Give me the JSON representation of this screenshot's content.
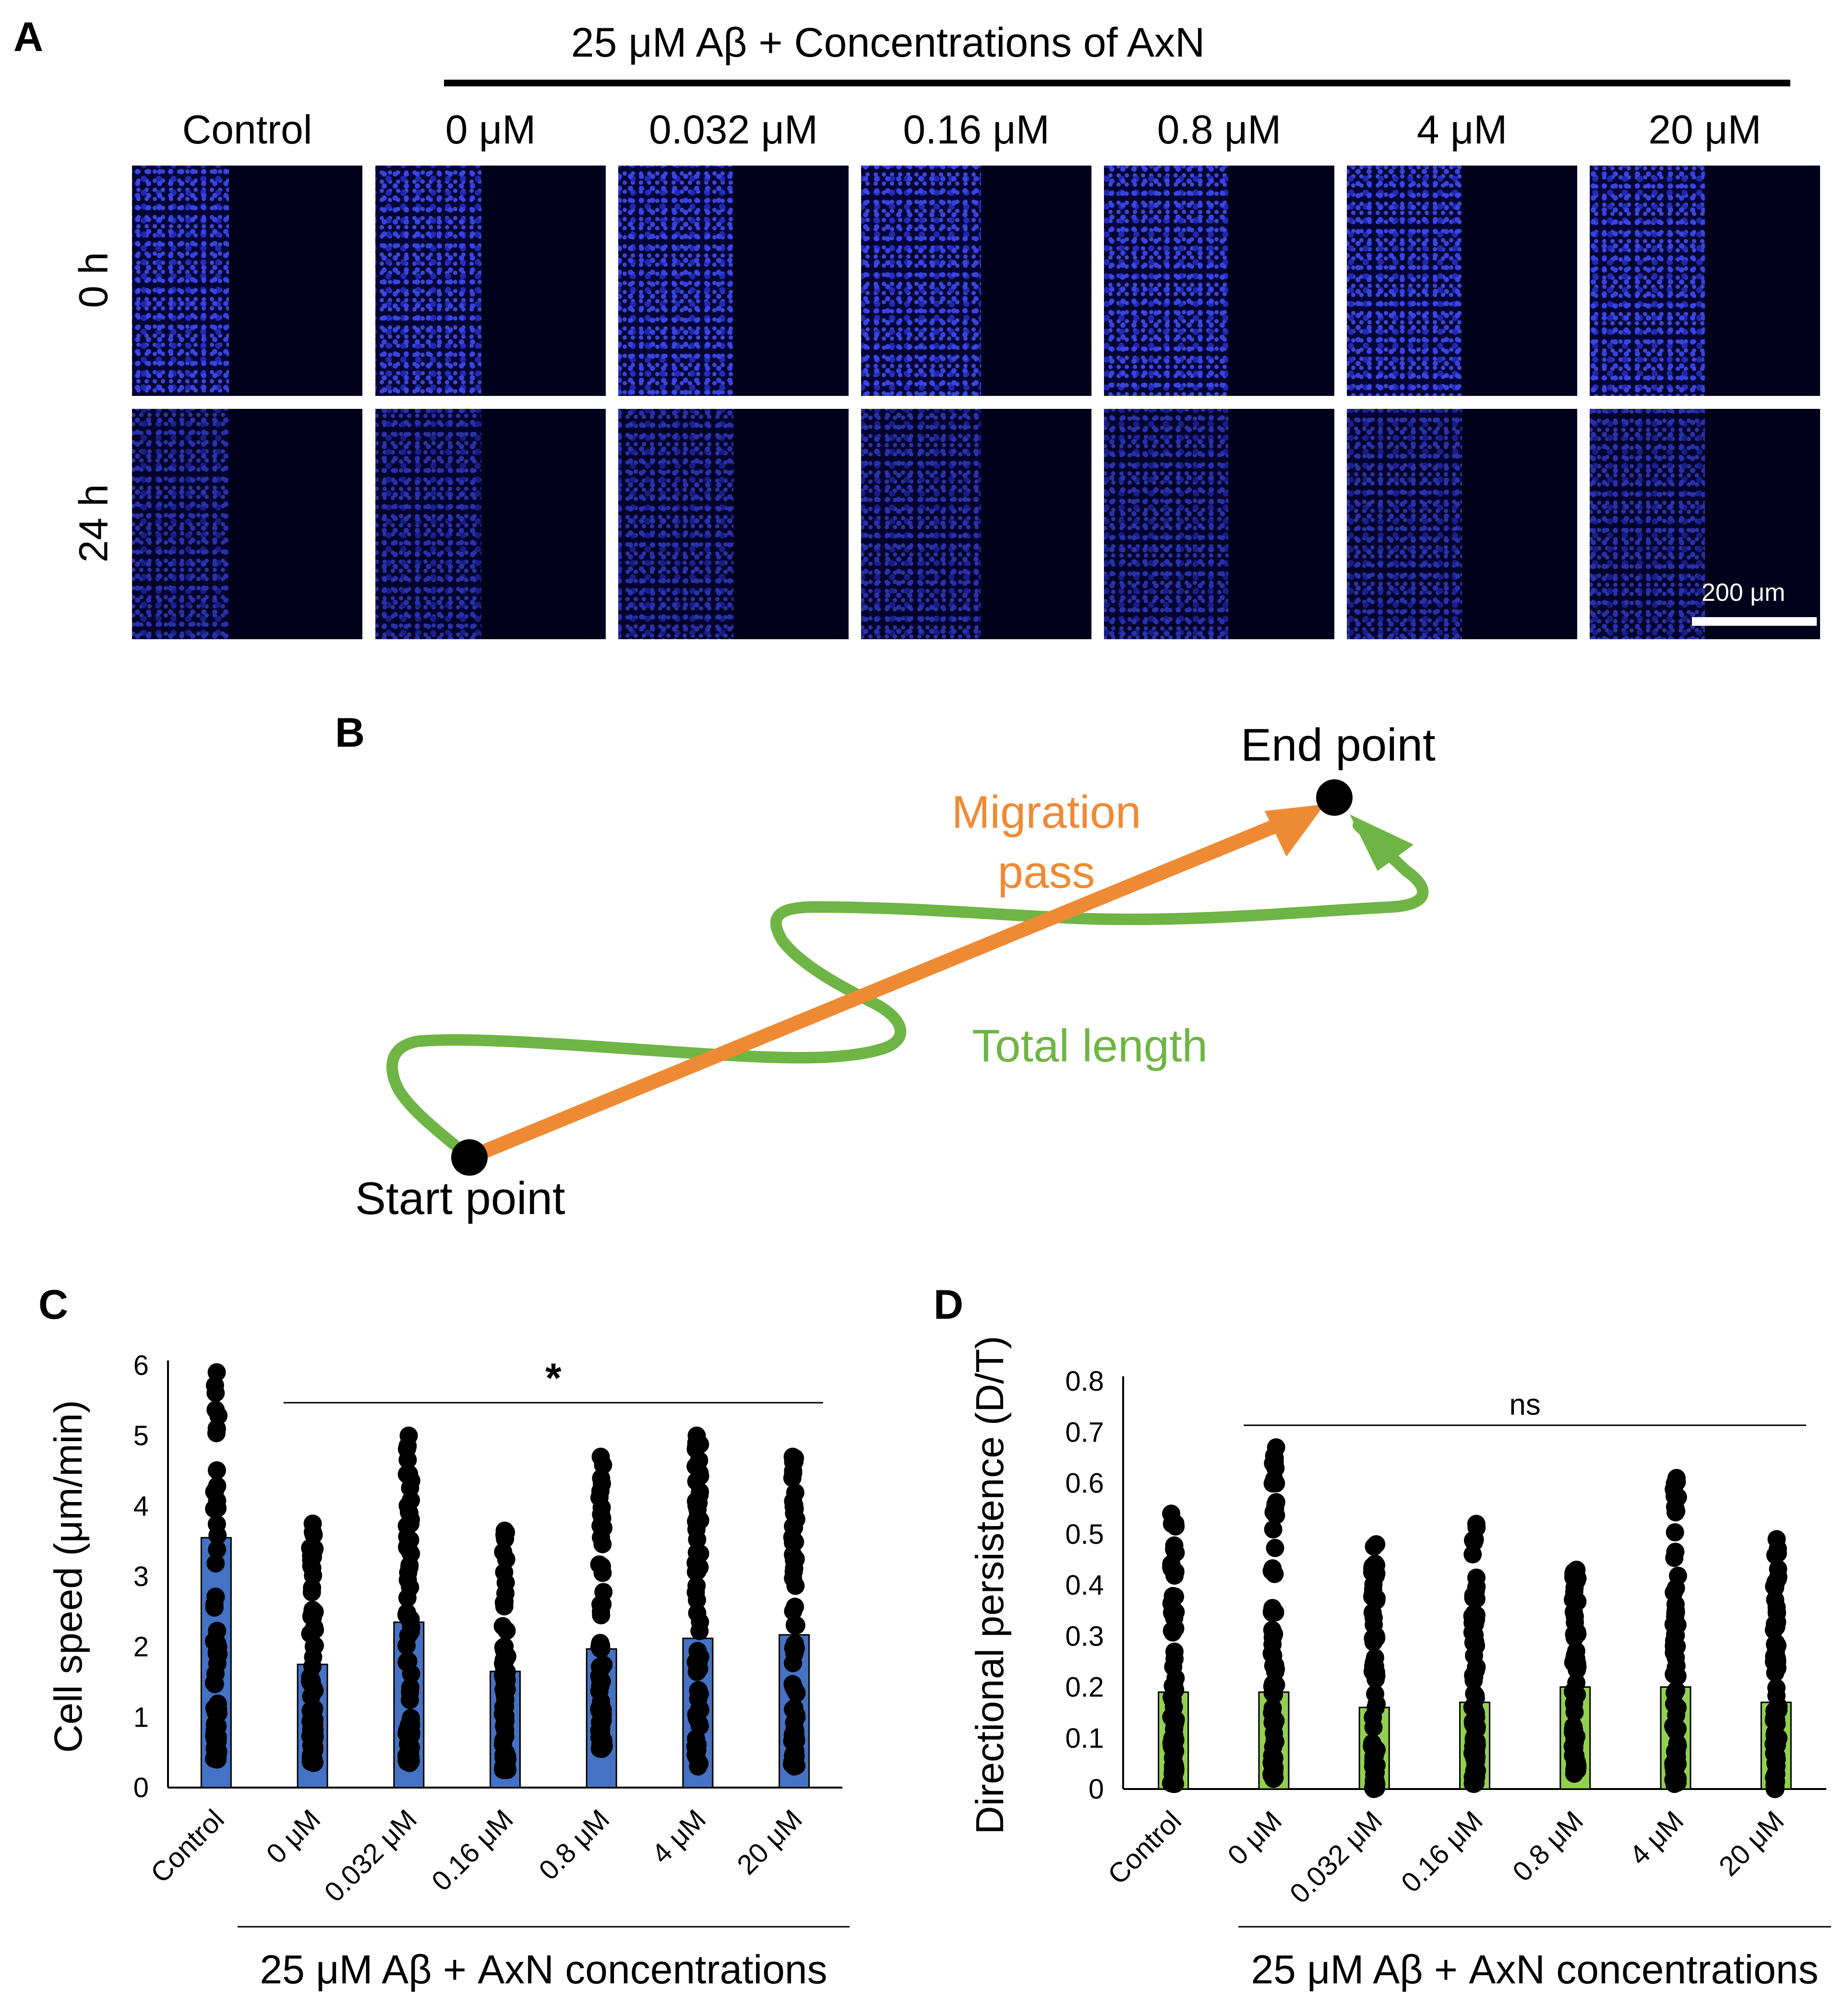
{
  "panel_A": {
    "letter": "A",
    "header": "25 μM Aβ + Concentrations of AxN",
    "columns": [
      "Control",
      "0 μM",
      "0.032 μM",
      "0.16 μM",
      "0.8 μM",
      "4 μM",
      "20 μM"
    ],
    "rows": [
      "0 h",
      "24 h"
    ],
    "scale_bar_label": "200 μm",
    "cell_color": "#2a3ae0",
    "background_color": "#01011c"
  },
  "panel_B": {
    "letter": "B",
    "end_label": "End point",
    "start_label": "Start point",
    "migration_label_1": "Migration",
    "migration_label_2": "pass",
    "total_label": "Total length",
    "migration_color": "#ef8a34",
    "total_color": "#6fb545"
  },
  "panel_C": {
    "letter": "C"
  },
  "panel_D": {
    "letter": "D"
  },
  "chart_data": [
    {
      "type": "bar",
      "ylabel": "Cell speed (μm/min)",
      "xlabel": "25 μM Aβ + AxN concentrations",
      "categories": [
        "Control",
        "0 μM",
        "0.032 μM",
        "0.16 μM",
        "0.8 μM",
        "4 μM",
        "20 μM"
      ],
      "values": [
        3.55,
        1.75,
        2.35,
        1.65,
        1.97,
        2.12,
        2.17
      ],
      "points_range": [
        [
          0.4,
          5.9
        ],
        [
          0.35,
          3.75
        ],
        [
          0.35,
          5.0
        ],
        [
          0.25,
          3.65
        ],
        [
          0.55,
          4.7
        ],
        [
          0.3,
          5.0
        ],
        [
          0.3,
          4.7
        ]
      ],
      "ylim": [
        0,
        6
      ],
      "yticks": [
        0,
        1,
        2,
        3,
        4,
        5,
        6
      ],
      "significance": "*",
      "bar_color": "#4472c4"
    },
    {
      "type": "bar",
      "ylabel": "Directional  persistence (D/T)",
      "xlabel": "25 μM Aβ + AxN concentrations",
      "categories": [
        "Control",
        "0 μM",
        "0.032 μM",
        "0.16 μM",
        "0.8 μM",
        "4 μM",
        "20 μM"
      ],
      "values": [
        0.19,
        0.19,
        0.16,
        0.17,
        0.2,
        0.2,
        0.17
      ],
      "points_range": [
        [
          0.01,
          0.54
        ],
        [
          0.02,
          0.67
        ],
        [
          0.0,
          0.48
        ],
        [
          0.01,
          0.52
        ],
        [
          0.03,
          0.43
        ],
        [
          0.01,
          0.61
        ],
        [
          0.0,
          0.49
        ]
      ],
      "ylim": [
        0,
        0.8
      ],
      "yticks": [
        "0",
        "0.1",
        "0.2",
        "0.3",
        "0.4",
        "0.5",
        "0.6",
        "0.7",
        "0.8"
      ],
      "significance": "ns",
      "bar_color": "#92d050"
    }
  ]
}
